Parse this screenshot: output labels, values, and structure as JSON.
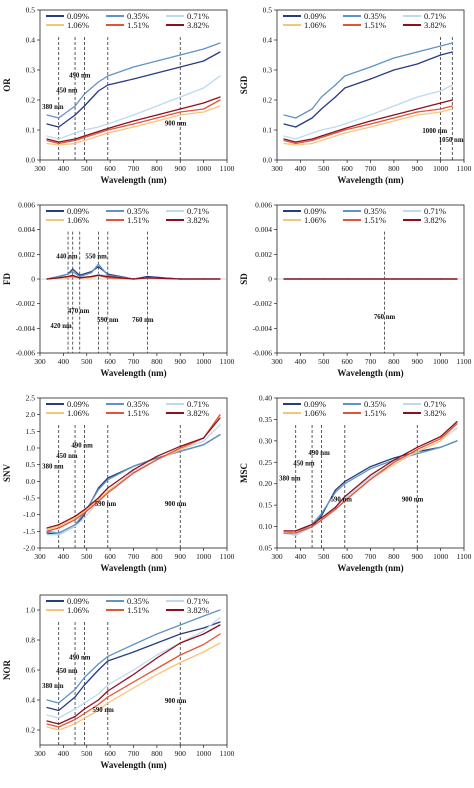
{
  "legend_labels": [
    "0.09%",
    "0.35%",
    "0.71%",
    "1.06%",
    "1.51%",
    "3.82%"
  ],
  "colors": [
    "#283c80",
    "#5f94c3",
    "#bfd9ee",
    "#f5c57b",
    "#e0553a",
    "#8d1020"
  ],
  "chart_data": [
    {
      "type": "line",
      "ylabel": "OR",
      "xlabel": "Wavelength (nm)",
      "xlim": [
        300,
        1100
      ],
      "ylim": [
        0,
        0.5
      ],
      "xticks": [
        "300",
        "400",
        "500",
        "600",
        "700",
        "800",
        "900",
        "1000",
        "1100"
      ],
      "yticks": [
        "0.0",
        "0.1",
        "0.2",
        "0.3",
        "0.4",
        "0.5"
      ],
      "x": [
        330,
        380,
        450,
        490,
        550,
        590,
        700,
        800,
        900,
        1000,
        1070
      ],
      "series": [
        {
          "name": "0.09%",
          "values": [
            0.12,
            0.11,
            0.15,
            0.18,
            0.23,
            0.25,
            0.27,
            0.29,
            0.31,
            0.33,
            0.36
          ]
        },
        {
          "name": "0.35%",
          "values": [
            0.15,
            0.14,
            0.18,
            0.22,
            0.26,
            0.28,
            0.31,
            0.33,
            0.35,
            0.37,
            0.39
          ]
        },
        {
          "name": "0.71%",
          "values": [
            0.08,
            0.07,
            0.09,
            0.1,
            0.11,
            0.12,
            0.15,
            0.18,
            0.21,
            0.24,
            0.28
          ]
        },
        {
          "name": "1.06%",
          "values": [
            0.055,
            0.05,
            0.055,
            0.065,
            0.08,
            0.09,
            0.11,
            0.13,
            0.15,
            0.16,
            0.18
          ]
        },
        {
          "name": "1.51%",
          "values": [
            0.065,
            0.055,
            0.065,
            0.075,
            0.09,
            0.1,
            0.12,
            0.14,
            0.16,
            0.17,
            0.2
          ]
        },
        {
          "name": "3.82%",
          "values": [
            0.07,
            0.06,
            0.07,
            0.08,
            0.095,
            0.105,
            0.13,
            0.15,
            0.17,
            0.19,
            0.21
          ]
        }
      ],
      "vlines": [
        380,
        450,
        490,
        590,
        900
      ],
      "annotations": [
        "380 nm",
        "450 nm",
        "490 nm",
        "900 nm"
      ]
    },
    {
      "type": "line",
      "ylabel": "SGD",
      "xlabel": "Wavelength (nm)",
      "xlim": [
        300,
        1100
      ],
      "ylim": [
        0,
        0.5
      ],
      "xticks": [
        "300",
        "400",
        "500",
        "600",
        "700",
        "800",
        "900",
        "1000",
        "1100"
      ],
      "yticks": [
        "0.0",
        "0.1",
        "0.2",
        "0.3",
        "0.4",
        "0.5"
      ],
      "x": [
        330,
        380,
        450,
        490,
        550,
        590,
        700,
        800,
        900,
        1000,
        1050
      ],
      "series": [
        {
          "name": "0.09%",
          "values": [
            0.12,
            0.11,
            0.14,
            0.17,
            0.21,
            0.24,
            0.27,
            0.3,
            0.32,
            0.35,
            0.36
          ]
        },
        {
          "name": "0.35%",
          "values": [
            0.15,
            0.14,
            0.17,
            0.21,
            0.25,
            0.28,
            0.31,
            0.34,
            0.36,
            0.38,
            0.39
          ]
        },
        {
          "name": "0.71%",
          "values": [
            0.08,
            0.07,
            0.09,
            0.1,
            0.11,
            0.12,
            0.15,
            0.18,
            0.21,
            0.23,
            0.25
          ]
        },
        {
          "name": "1.06%",
          "values": [
            0.055,
            0.05,
            0.055,
            0.065,
            0.08,
            0.09,
            0.11,
            0.13,
            0.15,
            0.16,
            0.17
          ]
        },
        {
          "name": "1.51%",
          "values": [
            0.065,
            0.055,
            0.065,
            0.075,
            0.09,
            0.1,
            0.12,
            0.14,
            0.16,
            0.17,
            0.18
          ]
        },
        {
          "name": "3.82%",
          "values": [
            0.07,
            0.06,
            0.07,
            0.08,
            0.095,
            0.105,
            0.13,
            0.15,
            0.17,
            0.19,
            0.2
          ]
        }
      ],
      "vlines": [
        1000,
        1050
      ],
      "annotations": [
        "1000 nm",
        "1050 nm"
      ]
    },
    {
      "type": "line",
      "ylabel": "FD",
      "xlabel": "Wavelength (nm)",
      "xlim": [
        300,
        1100
      ],
      "ylim": [
        -0.006,
        0.006
      ],
      "xticks": [
        "300",
        "400",
        "500",
        "600",
        "700",
        "800",
        "900",
        "1000",
        "1100"
      ],
      "yticks": [
        "-0.006",
        "-0.004",
        "-0.002",
        "0",
        "0.002",
        "0.004",
        "0.006"
      ],
      "x": [
        330,
        380,
        420,
        440,
        470,
        520,
        550,
        590,
        700,
        760,
        900,
        1000,
        1070
      ],
      "series": [
        {
          "name": "0.09%",
          "values": [
            0.0,
            0.0002,
            0.0004,
            0.0008,
            0.0003,
            0.0006,
            0.001,
            0.0004,
            0.0,
            0.0002,
            0.0,
            0.0,
            0.0
          ]
        },
        {
          "name": "0.35%",
          "values": [
            0.0,
            0.0002,
            0.0004,
            0.0006,
            0.0002,
            0.0005,
            0.0012,
            0.0003,
            0.0,
            0.0001,
            0.0,
            0.0,
            0.0
          ]
        },
        {
          "name": "0.71%",
          "values": [
            0.0,
            0.0001,
            0.0002,
            0.0003,
            0.0001,
            0.0002,
            0.0004,
            0.0002,
            0.0,
            0.0001,
            0.0,
            0.0,
            0.0
          ]
        },
        {
          "name": "1.06%",
          "values": [
            0.0,
            0.0001,
            0.0001,
            0.0002,
            0.0001,
            0.0001,
            0.0003,
            0.0001,
            0.0,
            0.0001,
            0.0,
            0.0,
            0.0
          ]
        },
        {
          "name": "1.51%",
          "values": [
            0.0,
            0.0001,
            0.0002,
            0.0002,
            0.0001,
            0.0002,
            0.0003,
            0.0001,
            0.0,
            0.0001,
            0.0,
            0.0,
            0.0
          ]
        },
        {
          "name": "3.82%",
          "values": [
            0.0,
            0.0001,
            0.0002,
            0.0003,
            0.0001,
            0.0002,
            0.0003,
            0.0002,
            0.0,
            0.0001,
            0.0,
            0.0,
            0.0
          ]
        }
      ],
      "vlines": [
        420,
        440,
        470,
        550,
        590,
        760
      ],
      "annotations": [
        "420 nm",
        "440 nm",
        "470 nm",
        "550 nm",
        "590 nm",
        "760 nm"
      ]
    },
    {
      "type": "line",
      "ylabel": "SD",
      "xlabel": "Wavelength (nm)",
      "xlim": [
        300,
        1100
      ],
      "ylim": [
        -0.006,
        0.006
      ],
      "xticks": [
        "300",
        "400",
        "500",
        "600",
        "700",
        "800",
        "900",
        "1000",
        "1100"
      ],
      "yticks": [
        "-0.006",
        "-0.004",
        "-0.002",
        "0",
        "0.002",
        "0.004",
        "0.006"
      ],
      "x": [
        330,
        400,
        500,
        600,
        700,
        760,
        800,
        900,
        1000,
        1070
      ],
      "series": [
        {
          "name": "0.09%",
          "values": [
            0,
            0,
            0,
            0,
            0,
            0,
            0,
            0,
            0,
            0
          ]
        },
        {
          "name": "0.35%",
          "values": [
            0,
            0,
            0,
            0,
            0,
            0,
            0,
            0,
            0,
            0
          ]
        },
        {
          "name": "0.71%",
          "values": [
            0,
            0,
            0,
            0,
            0,
            0,
            0,
            0,
            0,
            0
          ]
        },
        {
          "name": "1.06%",
          "values": [
            0,
            0,
            0,
            0,
            0,
            0,
            0,
            0,
            0,
            0
          ]
        },
        {
          "name": "1.51%",
          "values": [
            0,
            0,
            0,
            0,
            0,
            0,
            0,
            0,
            0,
            0
          ]
        },
        {
          "name": "3.82%",
          "values": [
            0,
            0,
            0,
            0,
            0,
            0,
            0,
            0,
            0,
            0
          ]
        }
      ],
      "vlines": [
        760
      ],
      "annotations": [
        "760 nm"
      ]
    },
    {
      "type": "line",
      "ylabel": "SNV",
      "xlabel": "Wavelength (nm)",
      "xlim": [
        300,
        1100
      ],
      "ylim": [
        -2.0,
        2.5
      ],
      "xticks": [
        "300",
        "400",
        "500",
        "600",
        "700",
        "800",
        "900",
        "1000",
        "1100"
      ],
      "yticks": [
        "-2.0",
        "-1.5",
        "-1.0",
        "-0.5",
        "0.0",
        "0.5",
        "1.0",
        "1.5",
        "2.0",
        "2.5"
      ],
      "x": [
        330,
        380,
        450,
        490,
        550,
        590,
        700,
        800,
        900,
        1000,
        1070
      ],
      "series": [
        {
          "name": "0.09%",
          "values": [
            -1.55,
            -1.6,
            -1.35,
            -1.0,
            -0.2,
            0.1,
            0.45,
            0.7,
            0.9,
            1.1,
            1.4
          ]
        },
        {
          "name": "0.35%",
          "values": [
            -1.5,
            -1.55,
            -1.3,
            -0.95,
            -0.25,
            0.05,
            0.45,
            0.7,
            0.9,
            1.1,
            1.4
          ]
        },
        {
          "name": "0.71%",
          "values": [
            -1.6,
            -1.6,
            -1.35,
            -1.1,
            -0.6,
            -0.3,
            0.3,
            0.65,
            0.95,
            1.2,
            1.7
          ]
        },
        {
          "name": "1.06%",
          "values": [
            -1.45,
            -1.35,
            -1.1,
            -0.9,
            -0.55,
            -0.3,
            0.25,
            0.65,
            0.95,
            1.3,
            2.0
          ]
        },
        {
          "name": "1.51%",
          "values": [
            -1.5,
            -1.4,
            -1.15,
            -0.95,
            -0.6,
            -0.35,
            0.25,
            0.65,
            1.0,
            1.3,
            2.0
          ]
        },
        {
          "name": "3.82%",
          "values": [
            -1.4,
            -1.3,
            -1.05,
            -0.85,
            -0.5,
            -0.2,
            0.35,
            0.75,
            1.05,
            1.3,
            1.9
          ]
        }
      ],
      "vlines": [
        380,
        450,
        490,
        590,
        900
      ],
      "annotations": [
        "380 nm",
        "450 nm",
        "490 nm",
        "590 nm",
        "900 nm"
      ]
    },
    {
      "type": "line",
      "ylabel": "MSC",
      "xlabel": "Wavelength (nm)",
      "xlim": [
        300,
        1100
      ],
      "ylim": [
        0.05,
        0.4
      ],
      "xticks": [
        "300",
        "400",
        "500",
        "600",
        "700",
        "800",
        "900",
        "1000",
        "1100"
      ],
      "yticks": [
        "0.05",
        "0.10",
        "0.15",
        "0.20",
        "0.25",
        "0.30",
        "0.35",
        "0.40"
      ],
      "x": [
        330,
        380,
        450,
        490,
        550,
        590,
        700,
        800,
        900,
        1000,
        1070
      ],
      "series": [
        {
          "name": "0.09%",
          "values": [
            0.085,
            0.08,
            0.1,
            0.125,
            0.185,
            0.205,
            0.24,
            0.26,
            0.275,
            0.285,
            0.3
          ]
        },
        {
          "name": "0.35%",
          "values": [
            0.09,
            0.085,
            0.105,
            0.13,
            0.18,
            0.2,
            0.235,
            0.255,
            0.27,
            0.285,
            0.3
          ]
        },
        {
          "name": "0.71%",
          "values": [
            0.085,
            0.08,
            0.1,
            0.115,
            0.145,
            0.165,
            0.215,
            0.25,
            0.275,
            0.3,
            0.33
          ]
        },
        {
          "name": "1.06%",
          "values": [
            0.09,
            0.085,
            0.1,
            0.115,
            0.14,
            0.16,
            0.21,
            0.245,
            0.275,
            0.3,
            0.34
          ]
        },
        {
          "name": "1.51%",
          "values": [
            0.085,
            0.085,
            0.1,
            0.115,
            0.14,
            0.16,
            0.21,
            0.25,
            0.28,
            0.305,
            0.34
          ]
        },
        {
          "name": "3.82%",
          "values": [
            0.09,
            0.09,
            0.105,
            0.12,
            0.145,
            0.17,
            0.22,
            0.255,
            0.285,
            0.31,
            0.345
          ]
        }
      ],
      "vlines": [
        380,
        450,
        490,
        590,
        900
      ],
      "annotations": [
        "380 nm",
        "450 nm",
        "490 nm",
        "590 nm",
        "900 nm"
      ]
    },
    {
      "type": "line",
      "ylabel": "NOR",
      "xlabel": "Wavelength (nm)",
      "xlim": [
        300,
        1100
      ],
      "ylim": [
        0.1,
        1.1
      ],
      "xticks": [
        "300",
        "400",
        "500",
        "600",
        "700",
        "800",
        "900",
        "1000",
        "1100"
      ],
      "yticks": [
        "0.2",
        "0.4",
        "0.6",
        "0.8",
        "1.0"
      ],
      "x": [
        330,
        380,
        450,
        490,
        550,
        590,
        700,
        800,
        900,
        1000,
        1070
      ],
      "series": [
        {
          "name": "0.09%",
          "values": [
            0.35,
            0.33,
            0.42,
            0.5,
            0.6,
            0.66,
            0.72,
            0.78,
            0.84,
            0.88,
            0.92
          ]
        },
        {
          "name": "0.35%",
          "values": [
            0.4,
            0.38,
            0.47,
            0.55,
            0.64,
            0.69,
            0.77,
            0.84,
            0.9,
            0.96,
            1.0
          ]
        },
        {
          "name": "0.71%",
          "values": [
            0.3,
            0.28,
            0.34,
            0.38,
            0.44,
            0.5,
            0.6,
            0.7,
            0.78,
            0.86,
            0.95
          ]
        },
        {
          "name": "1.06%",
          "values": [
            0.22,
            0.2,
            0.24,
            0.28,
            0.33,
            0.38,
            0.48,
            0.57,
            0.65,
            0.72,
            0.78
          ]
        },
        {
          "name": "1.51%",
          "values": [
            0.24,
            0.22,
            0.27,
            0.31,
            0.37,
            0.42,
            0.52,
            0.61,
            0.7,
            0.77,
            0.84
          ]
        },
        {
          "name": "3.82%",
          "values": [
            0.26,
            0.24,
            0.29,
            0.34,
            0.4,
            0.46,
            0.57,
            0.68,
            0.78,
            0.84,
            0.9
          ]
        }
      ],
      "vlines": [
        380,
        450,
        490,
        590,
        900
      ],
      "annotations": [
        "380 nm",
        "450 nm",
        "490 nm",
        "590 nm",
        "900 nm"
      ]
    }
  ]
}
